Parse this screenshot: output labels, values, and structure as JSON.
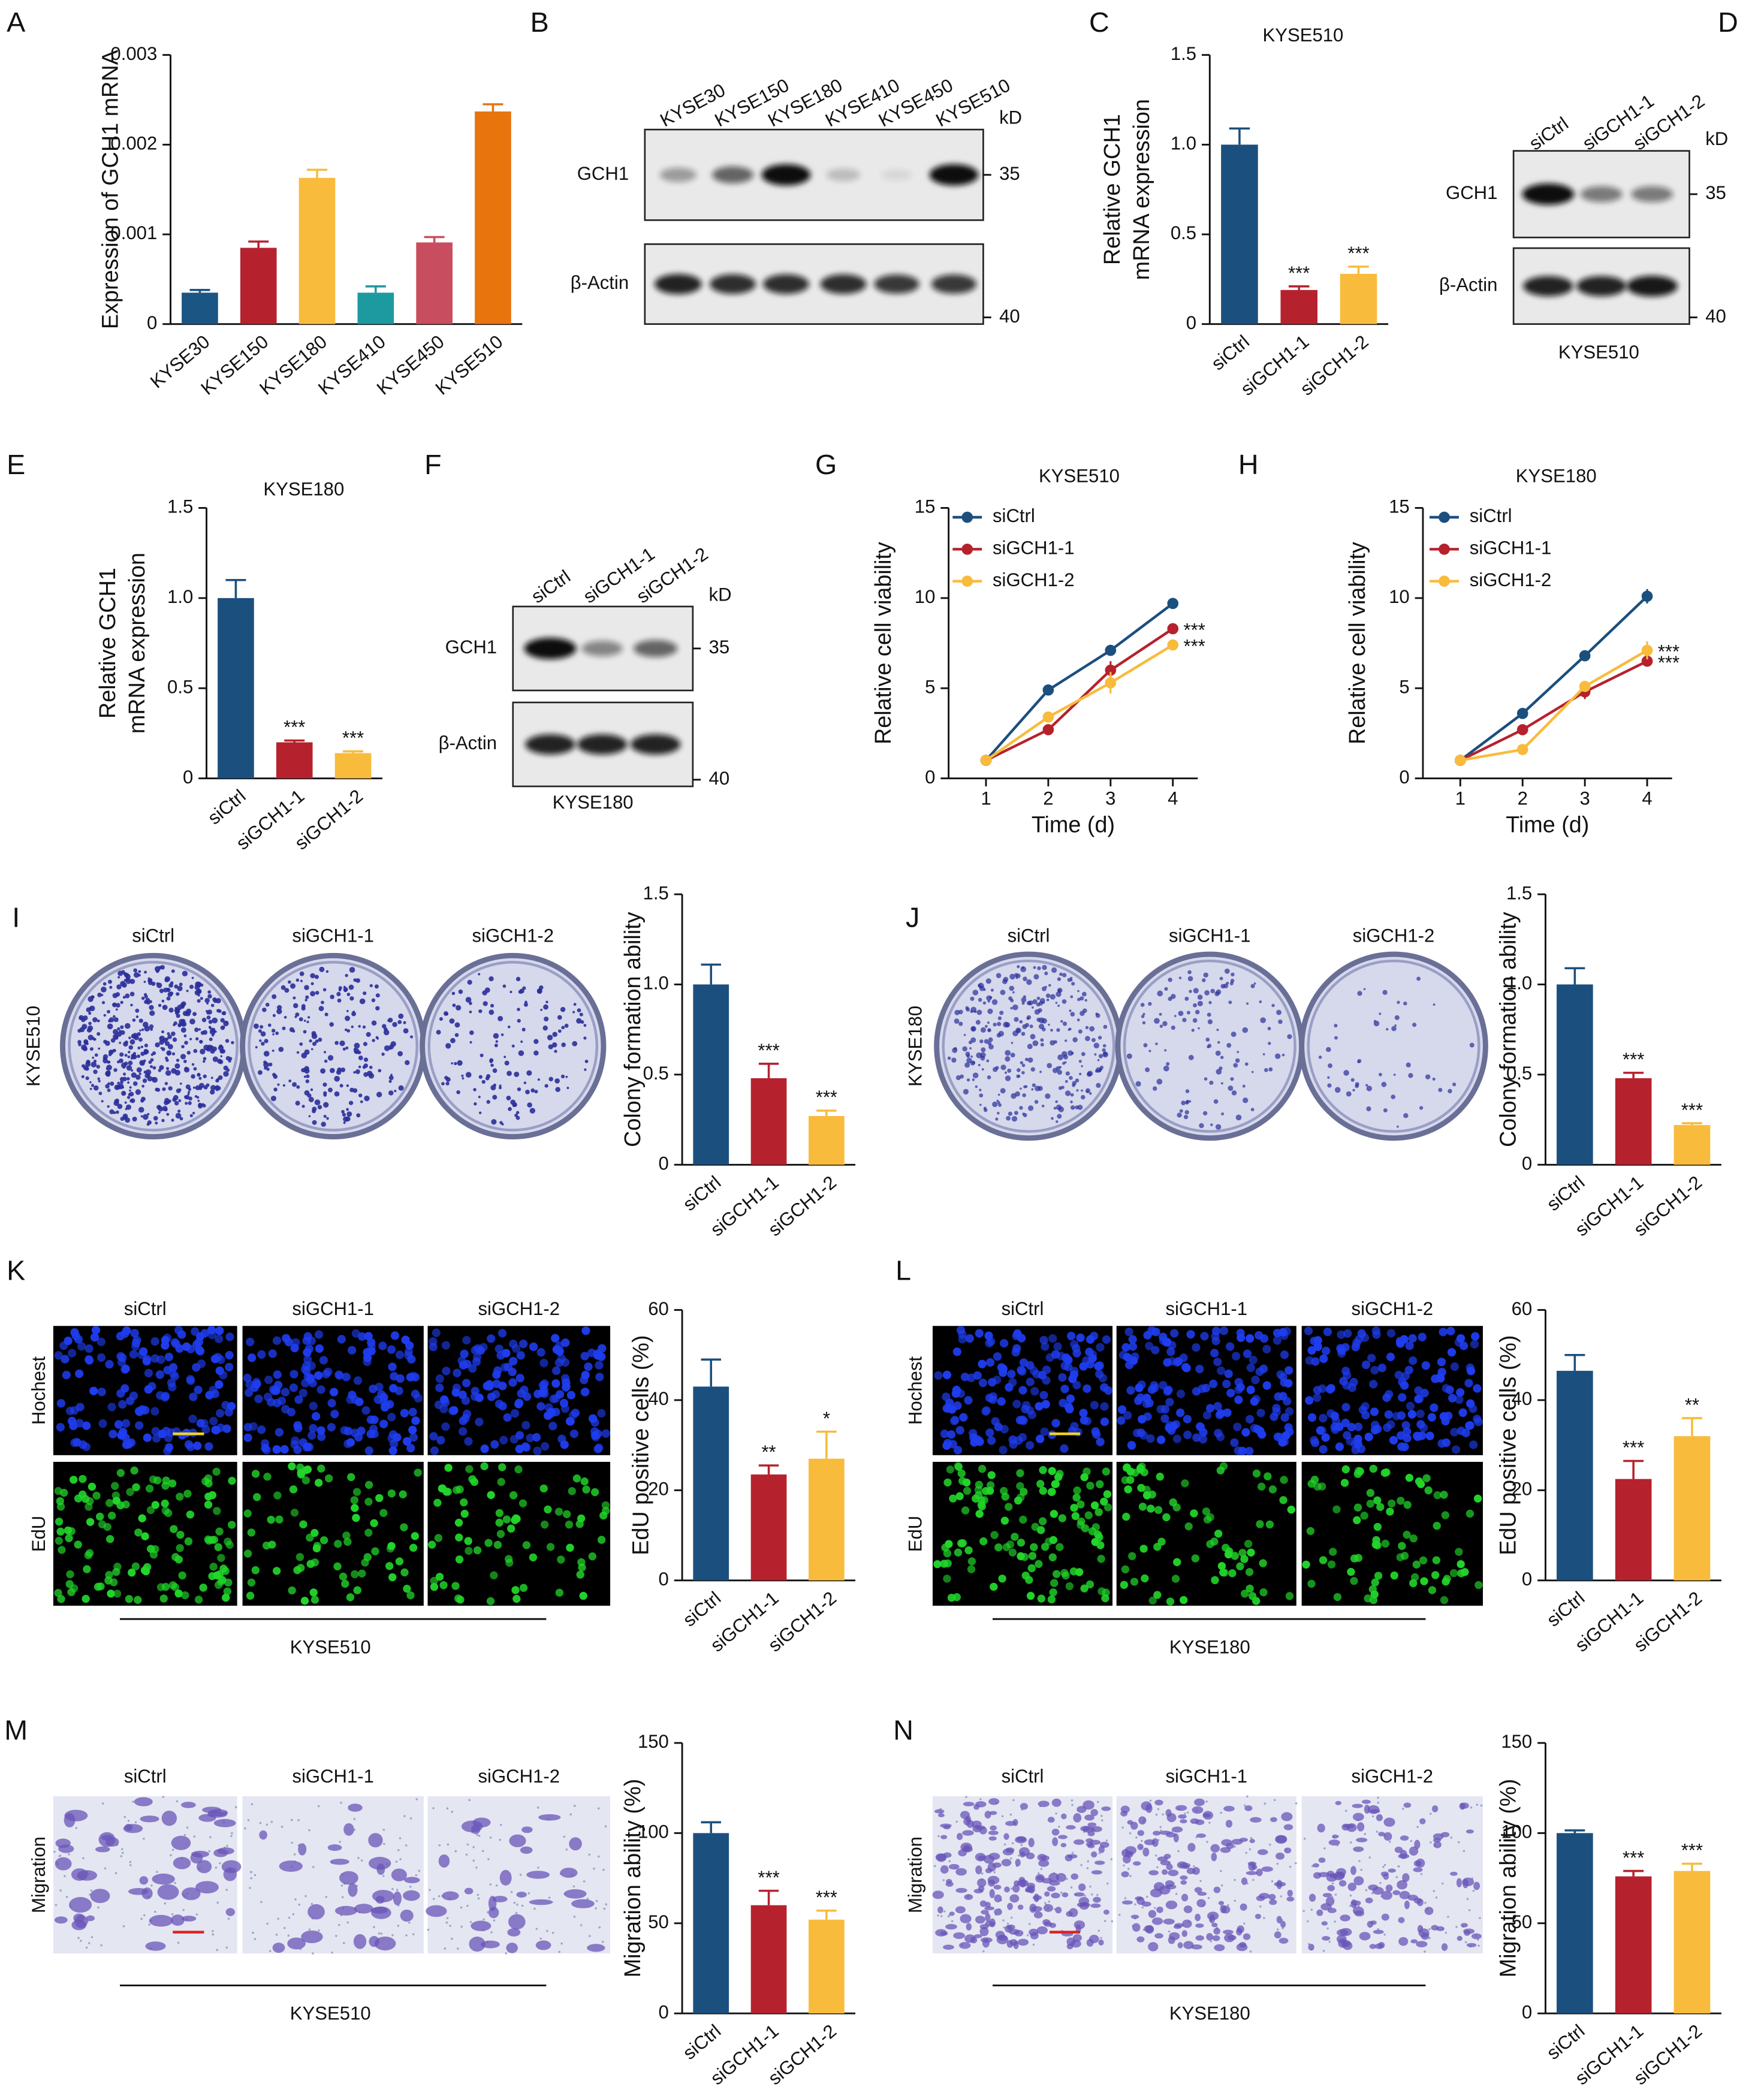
{
  "chart_data": [
    {
      "panel_label": "A",
      "type": "bar",
      "ylabel": [
        "Expression of GCH1 mRNA"
      ],
      "categories": [
        "KYSE30",
        "KYSE150",
        "KYSE180",
        "KYSE410",
        "KYSE450",
        "KYSE510"
      ],
      "values": [
        0.00035,
        0.00085,
        0.00163,
        0.00035,
        0.00091,
        0.00237
      ],
      "errors": [
        3e-05,
        7e-05,
        9e-05,
        7e-05,
        6e-05,
        8e-05
      ],
      "colors": [
        "#1b5583",
        "#b5222d",
        "#f8bb3c",
        "#1d9aa0",
        "#c84d5f",
        "#e8740e"
      ],
      "ylim": [
        0,
        0.003
      ],
      "yticks": [
        0,
        0.001,
        0.002,
        0.003
      ]
    },
    {
      "panel_label": "C",
      "type": "bar",
      "title": "KYSE510",
      "ylabel": [
        "Relative GCH1",
        "mRNA expression"
      ],
      "categories": [
        "siCtrl",
        "siGCH1-1",
        "siGCH1-2"
      ],
      "values": [
        1.0,
        0.19,
        0.28
      ],
      "errors": [
        0.09,
        0.02,
        0.04
      ],
      "significance": [
        null,
        "***",
        "***"
      ],
      "colors": [
        "#1b4f7e",
        "#b5222d",
        "#f8bb3c"
      ],
      "ylim": [
        0,
        1.5
      ],
      "yticks": [
        0,
        0.5,
        {
          "value": 1,
          "label": "1.0"
        },
        1.5
      ]
    },
    {
      "panel_label": "E",
      "type": "bar",
      "title": "KYSE180",
      "ylabel": [
        "Relative GCH1",
        "mRNA expression"
      ],
      "categories": [
        "siCtrl",
        "siGCH1-1",
        "siGCH1-2"
      ],
      "values": [
        1.0,
        0.2,
        0.14
      ],
      "errors": [
        0.1,
        0.01,
        0.01
      ],
      "significance": [
        null,
        "***",
        "***"
      ],
      "colors": [
        "#1b4f7e",
        "#b5222d",
        "#f8bb3c"
      ],
      "ylim": [
        0,
        1.5
      ],
      "yticks": [
        0,
        0.5,
        {
          "value": 1,
          "label": "1.0"
        },
        1.5
      ]
    },
    {
      "panel_label": "G",
      "type": "line",
      "title": "KYSE510",
      "xlabel": "Time (d)",
      "ylabel": [
        "Relative cell viability"
      ],
      "x": [
        1,
        2,
        3,
        4
      ],
      "xlim": [
        0.4,
        4.4
      ],
      "xticks": [
        1,
        2,
        3,
        4
      ],
      "ylim": [
        0,
        15
      ],
      "yticks": [
        0,
        5,
        10,
        15
      ],
      "series": [
        {
          "name": "siCtrl",
          "color": "#1b4f7e",
          "values": [
            1,
            4.9,
            7.1,
            9.7
          ],
          "errors": [
            0.05,
            0.15,
            0.25,
            0.3
          ]
        },
        {
          "name": "siGCH1-1",
          "color": "#b5222d",
          "values": [
            1,
            2.7,
            6.0,
            8.3
          ],
          "errors": [
            0.05,
            0.1,
            0.5,
            0.15
          ],
          "significance": [
            null,
            null,
            null,
            "***"
          ]
        },
        {
          "name": "siGCH1-2",
          "color": "#f8bb3c",
          "values": [
            1,
            3.4,
            5.3,
            7.4
          ],
          "errors": [
            0.05,
            0.1,
            0.6,
            0.1
          ],
          "significance": [
            null,
            null,
            null,
            "***"
          ]
        }
      ]
    },
    {
      "panel_label": "H",
      "type": "line",
      "title": "KYSE180",
      "xlabel": "Time (d)",
      "ylabel": [
        "Relative cell viability"
      ],
      "x": [
        1,
        2,
        3,
        4
      ],
      "xlim": [
        0.4,
        4.4
      ],
      "xticks": [
        1,
        2,
        3,
        4
      ],
      "ylim": [
        0,
        15
      ],
      "yticks": [
        0,
        5,
        10,
        15
      ],
      "series": [
        {
          "name": "siCtrl",
          "color": "#1b4f7e",
          "values": [
            1,
            3.6,
            6.8,
            10.1
          ],
          "errors": [
            0.05,
            0.15,
            0.2,
            0.4
          ]
        },
        {
          "name": "siGCH1-1",
          "color": "#b5222d",
          "values": [
            1,
            2.7,
            4.8,
            6.5
          ],
          "errors": [
            0.05,
            0.2,
            0.4,
            0.2
          ],
          "significance": [
            null,
            null,
            null,
            "***"
          ]
        },
        {
          "name": "siGCH1-2",
          "color": "#f8bb3c",
          "values": [
            1,
            1.6,
            5.1,
            7.1
          ],
          "errors": [
            0.3,
            0.1,
            0.3,
            0.5
          ],
          "significance": [
            null,
            null,
            null,
            "***"
          ]
        }
      ]
    },
    {
      "panel_label": "I",
      "type": "bar",
      "ylabel": [
        "Colony formation ability"
      ],
      "categories": [
        "siCtrl",
        "siGCH1-1",
        "siGCH1-2"
      ],
      "values": [
        1.0,
        0.48,
        0.27
      ],
      "errors": [
        0.11,
        0.08,
        0.03
      ],
      "significance": [
        null,
        "***",
        "***"
      ],
      "colors": [
        "#1b4f7e",
        "#b5222d",
        "#f8bb3c"
      ],
      "ylim": [
        0,
        1.5
      ],
      "yticks": [
        0,
        0.5,
        {
          "value": 1,
          "label": "1.0"
        },
        1.5
      ]
    },
    {
      "panel_label": "J",
      "type": "bar",
      "ylabel": [
        "Colony formation ability"
      ],
      "categories": [
        "siCtrl",
        "siGCH1-1",
        "siGCH1-2"
      ],
      "values": [
        1.0,
        0.48,
        0.22
      ],
      "errors": [
        0.09,
        0.03,
        0.01
      ],
      "significance": [
        null,
        "***",
        "***"
      ],
      "colors": [
        "#1b4f7e",
        "#b5222d",
        "#f8bb3c"
      ],
      "ylim": [
        0,
        1.5
      ],
      "yticks": [
        0,
        0.5,
        {
          "value": 1,
          "label": "1.0"
        },
        1.5
      ]
    },
    {
      "panel_label": "K",
      "type": "bar",
      "ylabel": [
        "EdU positive cells (%)"
      ],
      "categories": [
        "siCtrl",
        "siGCH1-1",
        "siGCH1-2"
      ],
      "values": [
        43,
        23.5,
        27
      ],
      "errors": [
        6,
        2,
        6
      ],
      "significance": [
        null,
        "**",
        "*"
      ],
      "colors": [
        "#1b4f7e",
        "#b5222d",
        "#f8bb3c"
      ],
      "ylim": [
        0,
        60
      ],
      "yticks": [
        0,
        20,
        40,
        60
      ]
    },
    {
      "panel_label": "L",
      "type": "bar",
      "ylabel": [
        "EdU positive cells (%)"
      ],
      "categories": [
        "siCtrl",
        "siGCH1-1",
        "siGCH1-2"
      ],
      "values": [
        46.5,
        22.5,
        32
      ],
      "errors": [
        3.5,
        4,
        4
      ],
      "significance": [
        null,
        "***",
        "**"
      ],
      "colors": [
        "#1b4f7e",
        "#b5222d",
        "#f8bb3c"
      ],
      "ylim": [
        0,
        60
      ],
      "yticks": [
        0,
        20,
        40,
        60
      ]
    },
    {
      "panel_label": "M",
      "type": "bar",
      "ylabel": [
        "Migration ability (%)"
      ],
      "categories": [
        "siCtrl",
        "siGCH1-1",
        "siGCH1-2"
      ],
      "values": [
        100,
        60,
        52
      ],
      "errors": [
        6,
        8,
        5
      ],
      "significance": [
        null,
        "***",
        "***"
      ],
      "colors": [
        "#1b4f7e",
        "#b5222d",
        "#f8bb3c"
      ],
      "ylim": [
        0,
        150
      ],
      "yticks": [
        0,
        50,
        100,
        150
      ]
    },
    {
      "panel_label": "N",
      "type": "bar",
      "ylabel": [
        "Migration ability (%)"
      ],
      "categories": [
        "siCtrl",
        "siGCH1-1",
        "siGCH1-2"
      ],
      "values": [
        100,
        76,
        79
      ],
      "errors": [
        1.5,
        3,
        4
      ],
      "significance": [
        null,
        "***",
        "***"
      ],
      "colors": [
        "#1b4f7e",
        "#b5222d",
        "#f8bb3c"
      ],
      "ylim": [
        0,
        150
      ],
      "yticks": [
        0,
        50,
        100,
        150
      ]
    }
  ],
  "blots": [
    {
      "panel_label": "B",
      "lanes": [
        "KYSE30",
        "KYSE150",
        "KYSE180",
        "KYSE410",
        "KYSE450",
        "KYSE510"
      ],
      "unit": "kD",
      "rows": [
        {
          "name": "GCH1",
          "marker": "35"
        },
        {
          "name": "β-Actin",
          "marker": "40"
        }
      ]
    },
    {
      "panel_label": "D",
      "lanes": [
        "siCtrl",
        "siGCH1-1",
        "siGCH1-2"
      ],
      "unit": "kD",
      "rows": [
        {
          "name": "GCH1",
          "marker": "35"
        },
        {
          "name": "β-Actin",
          "marker": "40"
        }
      ],
      "caption": "KYSE510"
    },
    {
      "panel_label": "F",
      "lanes": [
        "siCtrl",
        "siGCH1-1",
        "siGCH1-2"
      ],
      "unit": "kD",
      "rows": [
        {
          "name": "GCH1",
          "marker": "35"
        },
        {
          "name": "β-Actin",
          "marker": "40"
        }
      ],
      "caption": "KYSE180"
    }
  ],
  "image_panels": [
    {
      "columns": [
        "siCtrl",
        "siGCH1-1",
        "siGCH1-2"
      ],
      "rows": [
        "KYSE510"
      ]
    },
    {
      "columns": [
        "siCtrl",
        "siGCH1-1",
        "siGCH1-2"
      ],
      "rows": [
        "KYSE180"
      ]
    },
    {
      "columns": [
        "siCtrl",
        "siGCH1-1",
        "siGCH1-2"
      ],
      "rows": [
        "Hochest",
        "EdU"
      ],
      "caption": "KYSE510"
    },
    {
      "columns": [
        "siCtrl",
        "siGCH1-1",
        "siGCH1-2"
      ],
      "rows": [
        "Hochest",
        "EdU"
      ],
      "caption": "KYSE180"
    },
    {
      "columns": [
        "siCtrl",
        "siGCH1-1",
        "siGCH1-2"
      ],
      "rows": [
        "Migration"
      ],
      "caption": "KYSE510"
    },
    {
      "columns": [
        "siCtrl",
        "siGCH1-1",
        "siGCH1-2"
      ],
      "rows": [
        "Migration"
      ],
      "caption": "KYSE180"
    }
  ]
}
